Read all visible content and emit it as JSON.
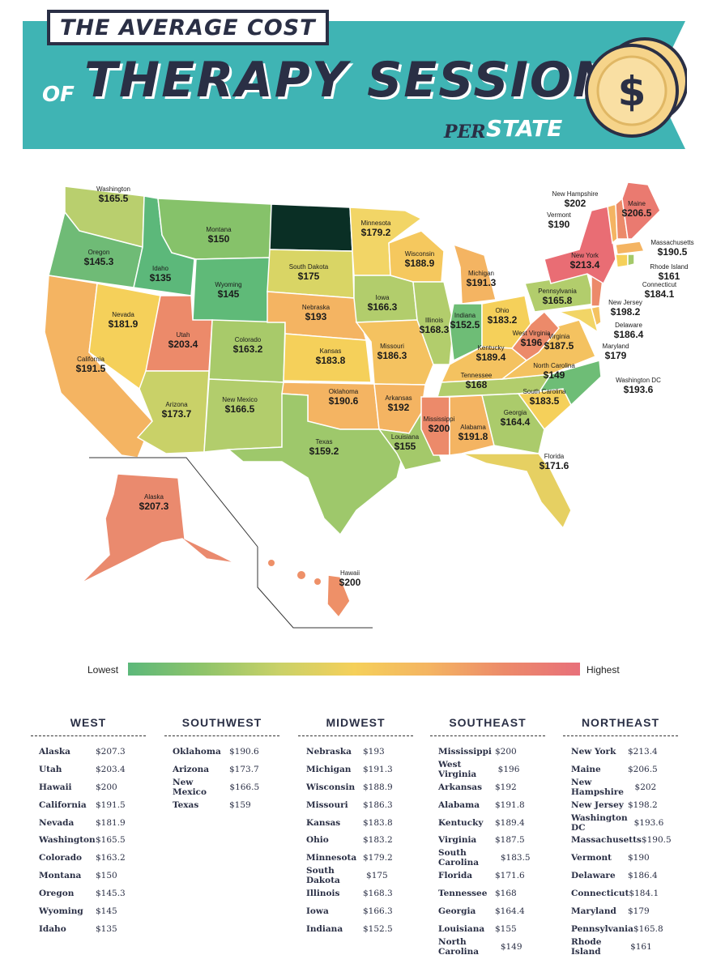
{
  "header": {
    "line1": "THE AVERAGE COST",
    "of": "OF",
    "main": "THERAPY SESSIONS",
    "per": "PER",
    "state": "STATE",
    "coin_symbol": "$"
  },
  "colors": {
    "banner": "#3fb4b4",
    "ink": "#2a2f45",
    "coin": "#f6d48a",
    "lowest": "#5cb87a",
    "highest": "#e8707a"
  },
  "map": {
    "states": [
      {
        "name": "Washington",
        "cost": "$165.5"
      },
      {
        "name": "Oregon",
        "cost": "$145.3"
      },
      {
        "name": "California",
        "cost": "$191.5"
      },
      {
        "name": "Nevada",
        "cost": "$181.9"
      },
      {
        "name": "Idaho",
        "cost": "$135"
      },
      {
        "name": "Montana",
        "cost": "$150"
      },
      {
        "name": "Wyoming",
        "cost": "$145"
      },
      {
        "name": "Utah",
        "cost": "$203.4"
      },
      {
        "name": "Arizona",
        "cost": "$173.7"
      },
      {
        "name": "Colorado",
        "cost": "$163.2"
      },
      {
        "name": "New Mexico",
        "cost": "$166.5"
      },
      {
        "name": "South Dakota",
        "cost": "$175"
      },
      {
        "name": "Nebraska",
        "cost": "$193"
      },
      {
        "name": "Kansas",
        "cost": "$183.8"
      },
      {
        "name": "Oklahoma",
        "cost": "$190.6"
      },
      {
        "name": "Texas",
        "cost": "$159.2"
      },
      {
        "name": "Minnesota",
        "cost": "$179.2"
      },
      {
        "name": "Iowa",
        "cost": "$166.3"
      },
      {
        "name": "Missouri",
        "cost": "$186.3"
      },
      {
        "name": "Arkansas",
        "cost": "$192"
      },
      {
        "name": "Louisiana",
        "cost": "$155"
      },
      {
        "name": "Wisconsin",
        "cost": "$188.9"
      },
      {
        "name": "Illinois",
        "cost": "$168.3"
      },
      {
        "name": "Michigan",
        "cost": "$191.3"
      },
      {
        "name": "Indiana",
        "cost": "$152.5"
      },
      {
        "name": "Ohio",
        "cost": "$183.2"
      },
      {
        "name": "Kentucky",
        "cost": "$189.4"
      },
      {
        "name": "Tennessee",
        "cost": "$168"
      },
      {
        "name": "Mississippi",
        "cost": "$200"
      },
      {
        "name": "Alabama",
        "cost": "$191.8"
      },
      {
        "name": "Georgia",
        "cost": "$164.4"
      },
      {
        "name": "Florida",
        "cost": "$171.6"
      },
      {
        "name": "South Carolina",
        "cost": "$183.5"
      },
      {
        "name": "North Carolina",
        "cost": "$149"
      },
      {
        "name": "Virginia",
        "cost": "$187.5"
      },
      {
        "name": "West Virginia",
        "cost": "$196"
      },
      {
        "name": "Pennsylvania",
        "cost": "$165.8"
      },
      {
        "name": "New York",
        "cost": "$213.4"
      },
      {
        "name": "Maine",
        "cost": "$206.5"
      },
      {
        "name": "New Hampshire",
        "cost": "$202"
      },
      {
        "name": "Vermont",
        "cost": "$190"
      },
      {
        "name": "Massachusetts",
        "cost": "$190.5"
      },
      {
        "name": "Rhode Island",
        "cost": "$161"
      },
      {
        "name": "Connecticut",
        "cost": "$184.1"
      },
      {
        "name": "New Jersey",
        "cost": "$198.2"
      },
      {
        "name": "Delaware",
        "cost": "$186.4"
      },
      {
        "name": "Maryland",
        "cost": "$179"
      },
      {
        "name": "Washington DC",
        "cost": "$193.6"
      },
      {
        "name": "Alaska",
        "cost": "$207.3"
      },
      {
        "name": "Hawaii",
        "cost": "$200"
      }
    ]
  },
  "legend": {
    "low": "Lowest",
    "high": "Highest"
  },
  "regions": [
    {
      "title": "WEST",
      "rows": [
        {
          "state": "Alaska",
          "cost": "$207.3"
        },
        {
          "state": "Utah",
          "cost": "$203.4"
        },
        {
          "state": "Hawaii",
          "cost": "$200"
        },
        {
          "state": "California",
          "cost": "$191.5"
        },
        {
          "state": "Nevada",
          "cost": "$181.9"
        },
        {
          "state": "Washington",
          "cost": "$165.5"
        },
        {
          "state": "Colorado",
          "cost": "$163.2"
        },
        {
          "state": "Montana",
          "cost": "$150"
        },
        {
          "state": "Oregon",
          "cost": "$145.3"
        },
        {
          "state": "Wyoming",
          "cost": "$145"
        },
        {
          "state": "Idaho",
          "cost": "$135"
        }
      ]
    },
    {
      "title": "SOUTHWEST",
      "rows": [
        {
          "state": "Oklahoma",
          "cost": "$190.6"
        },
        {
          "state": "Arizona",
          "cost": "$173.7"
        },
        {
          "state": "New Mexico",
          "cost": "$166.5"
        },
        {
          "state": "Texas",
          "cost": "$159"
        }
      ]
    },
    {
      "title": "MIDWEST",
      "rows": [
        {
          "state": "Nebraska",
          "cost": "$193"
        },
        {
          "state": "Michigan",
          "cost": "$191.3"
        },
        {
          "state": "Wisconsin",
          "cost": "$188.9"
        },
        {
          "state": "Missouri",
          "cost": "$186.3"
        },
        {
          "state": "Kansas",
          "cost": "$183.8"
        },
        {
          "state": "Ohio",
          "cost": "$183.2"
        },
        {
          "state": "Minnesota",
          "cost": "$179.2"
        },
        {
          "state": "South Dakota",
          "cost": "$175"
        },
        {
          "state": "Illinois",
          "cost": "$168.3"
        },
        {
          "state": "Iowa",
          "cost": "$166.3"
        },
        {
          "state": "Indiana",
          "cost": "$152.5"
        }
      ]
    },
    {
      "title": "SOUTHEAST",
      "rows": [
        {
          "state": "Mississippi",
          "cost": "$200"
        },
        {
          "state": "West Virginia",
          "cost": "$196"
        },
        {
          "state": "Arkansas",
          "cost": "$192"
        },
        {
          "state": "Alabama",
          "cost": "$191.8"
        },
        {
          "state": "Kentucky",
          "cost": "$189.4"
        },
        {
          "state": "Virginia",
          "cost": "$187.5"
        },
        {
          "state": "South Carolina",
          "cost": "$183.5"
        },
        {
          "state": "Florida",
          "cost": "$171.6"
        },
        {
          "state": "Tennessee",
          "cost": "$168"
        },
        {
          "state": "Georgia",
          "cost": "$164.4"
        },
        {
          "state": "Louisiana",
          "cost": "$155"
        },
        {
          "state": "North Carolina",
          "cost": "$149"
        }
      ]
    },
    {
      "title": "NORTHEAST",
      "rows": [
        {
          "state": "New York",
          "cost": "$213.4"
        },
        {
          "state": "Maine",
          "cost": "$206.5"
        },
        {
          "state": "New Hampshire",
          "cost": "$202"
        },
        {
          "state": "New Jersey",
          "cost": "$198.2"
        },
        {
          "state": "Washington DC",
          "cost": "$193.6"
        },
        {
          "state": "Massachusetts",
          "cost": "$190.5"
        },
        {
          "state": "Vermont",
          "cost": "$190"
        },
        {
          "state": "Delaware",
          "cost": "$186.4"
        },
        {
          "state": "Connecticut",
          "cost": "$184.1"
        },
        {
          "state": "Maryland",
          "cost": "$179"
        },
        {
          "state": "Pennsylvania",
          "cost": "$165.8"
        },
        {
          "state": "Rhode Island",
          "cost": "$161"
        }
      ]
    }
  ]
}
